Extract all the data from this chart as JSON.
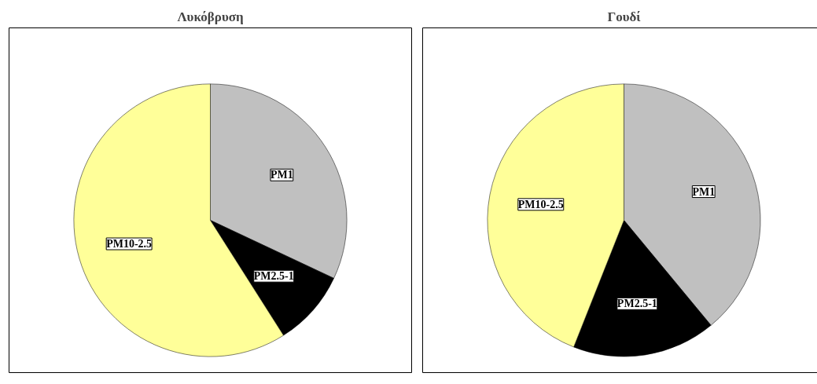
{
  "chart_data": [
    {
      "type": "pie",
      "title": "Λυκόβρυση",
      "categories": [
        "PM1",
        "PM2.5-1",
        "PM10-2.5"
      ],
      "values": [
        32,
        9,
        59
      ],
      "colors": [
        "#c0c0c0",
        "#000000",
        "#ffff99"
      ],
      "legend": false
    },
    {
      "type": "pie",
      "title": "Γουδί",
      "categories": [
        "PM1",
        "PM2.5-1",
        "PM10-2.5"
      ],
      "values": [
        39,
        17,
        44
      ],
      "colors": [
        "#c0c0c0",
        "#000000",
        "#ffff99"
      ],
      "legend": false
    }
  ]
}
